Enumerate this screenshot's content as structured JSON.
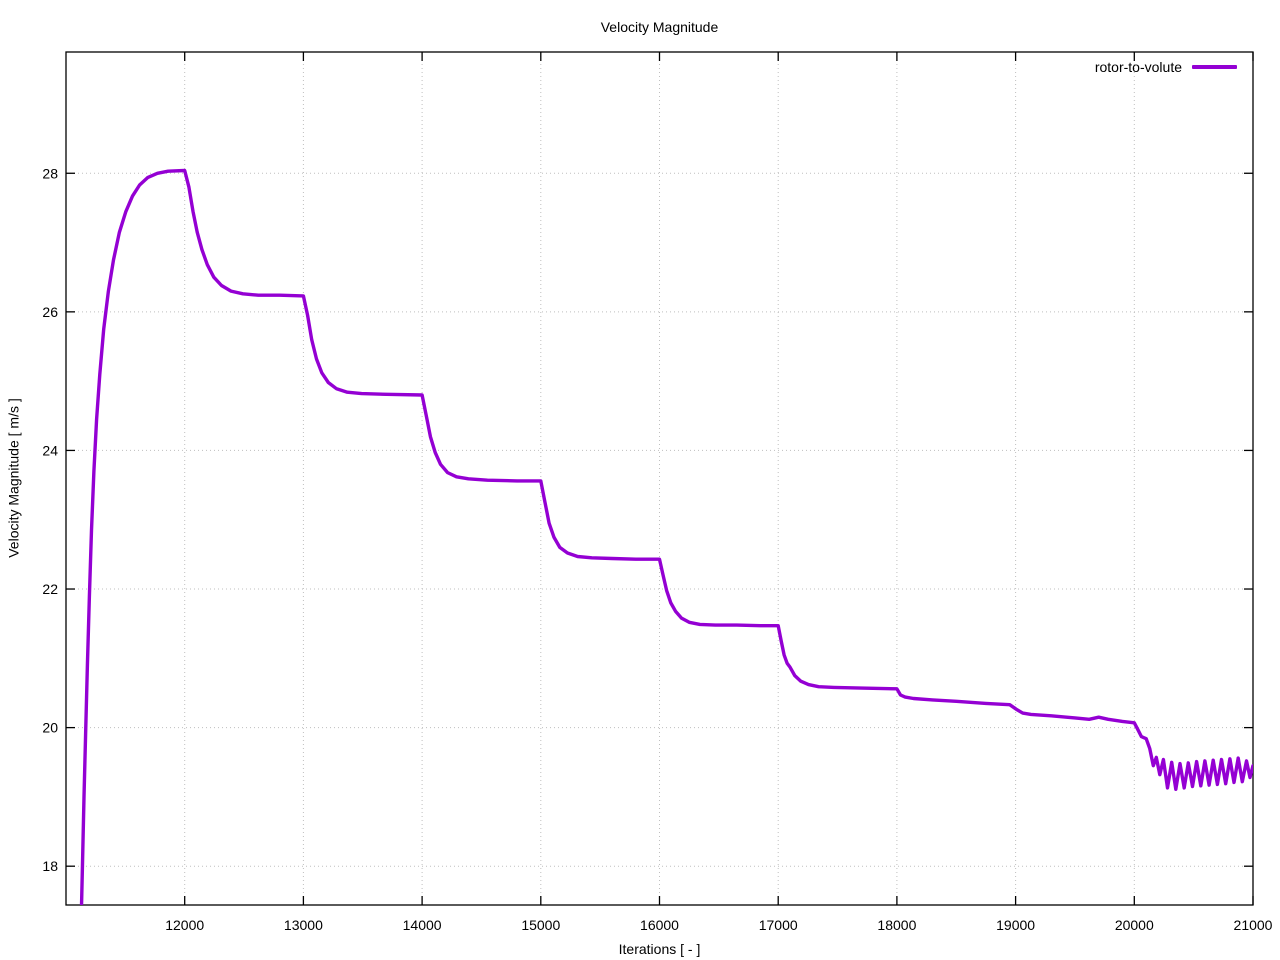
{
  "window": {
    "background": "#ffffff"
  },
  "colors": {
    "line": "#9400d3",
    "grid": "#bfbfbf",
    "axis": "#000000",
    "text": "#000000"
  },
  "chart_data": {
    "type": "line",
    "title": "Velocity Magnitude",
    "xlabel": "Iterations [ - ]",
    "ylabel": "Velocity Magnitude [ m/s ]",
    "series_label": "rotor-to-volute",
    "legend_position": "top-right",
    "grid": true,
    "xlim": [
      11000,
      21000
    ],
    "ylim": [
      17.44,
      29.75
    ],
    "xticks": [
      12000,
      13000,
      14000,
      15000,
      16000,
      17000,
      18000,
      19000,
      20000,
      21000
    ],
    "yticks": [
      18,
      20,
      22,
      24,
      26,
      28
    ],
    "points": [
      [
        11130,
        17.35
      ],
      [
        11140,
        18.1
      ],
      [
        11152,
        19.0
      ],
      [
        11165,
        19.9
      ],
      [
        11180,
        20.9
      ],
      [
        11197,
        21.9
      ],
      [
        11215,
        22.85
      ],
      [
        11235,
        23.7
      ],
      [
        11258,
        24.45
      ],
      [
        11285,
        25.1
      ],
      [
        11318,
        25.75
      ],
      [
        11357,
        26.3
      ],
      [
        11400,
        26.75
      ],
      [
        11450,
        27.15
      ],
      [
        11505,
        27.45
      ],
      [
        11560,
        27.67
      ],
      [
        11620,
        27.83
      ],
      [
        11690,
        27.94
      ],
      [
        11770,
        28.0
      ],
      [
        11860,
        28.03
      ],
      [
        12000,
        28.04
      ],
      [
        12035,
        27.8
      ],
      [
        12070,
        27.45
      ],
      [
        12105,
        27.15
      ],
      [
        12145,
        26.9
      ],
      [
        12190,
        26.68
      ],
      [
        12245,
        26.5
      ],
      [
        12310,
        26.38
      ],
      [
        12390,
        26.3
      ],
      [
        12490,
        26.26
      ],
      [
        12620,
        26.24
      ],
      [
        12800,
        26.24
      ],
      [
        13000,
        26.23
      ],
      [
        13035,
        25.95
      ],
      [
        13070,
        25.6
      ],
      [
        13110,
        25.32
      ],
      [
        13155,
        25.12
      ],
      [
        13210,
        24.98
      ],
      [
        13280,
        24.89
      ],
      [
        13370,
        24.84
      ],
      [
        13490,
        24.82
      ],
      [
        13700,
        24.81
      ],
      [
        14000,
        24.8
      ],
      [
        14035,
        24.5
      ],
      [
        14070,
        24.2
      ],
      [
        14110,
        23.97
      ],
      [
        14155,
        23.8
      ],
      [
        14215,
        23.68
      ],
      [
        14290,
        23.62
      ],
      [
        14390,
        23.59
      ],
      [
        14550,
        23.57
      ],
      [
        14800,
        23.56
      ],
      [
        15000,
        23.56
      ],
      [
        15035,
        23.25
      ],
      [
        15070,
        22.95
      ],
      [
        15110,
        22.75
      ],
      [
        15160,
        22.6
      ],
      [
        15225,
        22.52
      ],
      [
        15310,
        22.47
      ],
      [
        15430,
        22.45
      ],
      [
        15600,
        22.44
      ],
      [
        15800,
        22.43
      ],
      [
        16000,
        22.43
      ],
      [
        16030,
        22.2
      ],
      [
        16060,
        21.98
      ],
      [
        16095,
        21.8
      ],
      [
        16135,
        21.68
      ],
      [
        16185,
        21.58
      ],
      [
        16250,
        21.52
      ],
      [
        16340,
        21.49
      ],
      [
        16470,
        21.48
      ],
      [
        16650,
        21.48
      ],
      [
        16850,
        21.47
      ],
      [
        17000,
        21.47
      ],
      [
        17025,
        21.25
      ],
      [
        17050,
        21.05
      ],
      [
        17075,
        20.93
      ],
      [
        17100,
        20.87
      ],
      [
        17140,
        20.75
      ],
      [
        17190,
        20.67
      ],
      [
        17255,
        20.62
      ],
      [
        17340,
        20.59
      ],
      [
        17470,
        20.58
      ],
      [
        17700,
        20.57
      ],
      [
        18000,
        20.56
      ],
      [
        18030,
        20.47
      ],
      [
        18070,
        20.44
      ],
      [
        18140,
        20.42
      ],
      [
        18300,
        20.4
      ],
      [
        18500,
        20.38
      ],
      [
        18750,
        20.35
      ],
      [
        18950,
        20.33
      ],
      [
        19010,
        20.26
      ],
      [
        19060,
        20.21
      ],
      [
        19130,
        20.19
      ],
      [
        19300,
        20.17
      ],
      [
        19500,
        20.14
      ],
      [
        19620,
        20.12
      ],
      [
        19700,
        20.15
      ],
      [
        19780,
        20.12
      ],
      [
        19900,
        20.09
      ],
      [
        20000,
        20.07
      ],
      [
        20030,
        19.97
      ],
      [
        20060,
        19.87
      ],
      [
        20100,
        19.84
      ],
      [
        20130,
        19.7
      ],
      [
        20160,
        19.45
      ],
      [
        20185,
        19.57
      ],
      [
        20215,
        19.32
      ],
      [
        20245,
        19.54
      ],
      [
        20280,
        19.13
      ],
      [
        20315,
        19.5
      ],
      [
        20350,
        19.11
      ],
      [
        20385,
        19.48
      ],
      [
        20420,
        19.13
      ],
      [
        20455,
        19.49
      ],
      [
        20490,
        19.15
      ],
      [
        20525,
        19.51
      ],
      [
        20560,
        19.16
      ],
      [
        20595,
        19.52
      ],
      [
        20630,
        19.17
      ],
      [
        20665,
        19.53
      ],
      [
        20700,
        19.18
      ],
      [
        20735,
        19.54
      ],
      [
        20770,
        19.19
      ],
      [
        20805,
        19.55
      ],
      [
        20840,
        19.21
      ],
      [
        20875,
        19.56
      ],
      [
        20910,
        19.22
      ],
      [
        20945,
        19.52
      ],
      [
        20975,
        19.28
      ],
      [
        21000,
        19.45
      ]
    ]
  }
}
